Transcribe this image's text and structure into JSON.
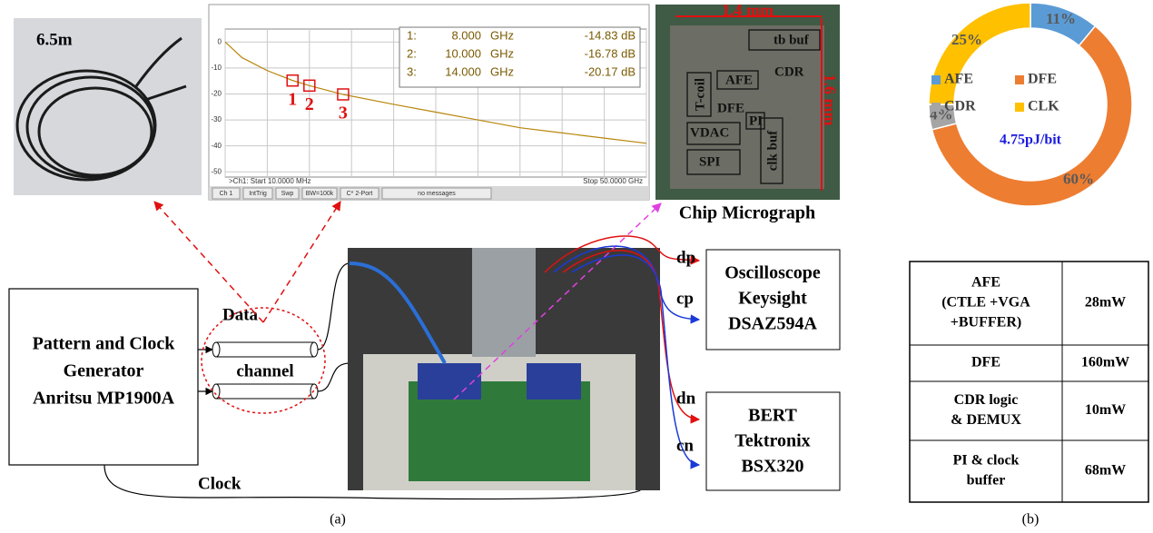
{
  "chart_data": [
    {
      "type": "line",
      "color": "#b8860b",
      "x": [
        0.01,
        2,
        5,
        8,
        10,
        14,
        20,
        25,
        30,
        35,
        40,
        45,
        50
      ],
      "values": [
        0,
        -6,
        -11,
        -14.8,
        -16.8,
        -20.2,
        -24,
        -27,
        -30,
        -33,
        -35,
        -37,
        -39
      ],
      "xlim": [
        0,
        50
      ],
      "xticks": [
        0,
        5,
        10,
        15,
        20,
        25,
        30,
        35,
        40,
        45,
        50
      ],
      "ylim": [
        -52,
        5
      ],
      "yticks": [
        0,
        -10,
        -20,
        -30,
        -40,
        -50
      ],
      "grid": true,
      "markers": {
        "x": [
          8,
          10,
          14
        ],
        "values": [
          -14.83,
          -16.78,
          -20.17
        ],
        "labels": [
          "1",
          "2",
          "3"
        ],
        "color": "#e01010"
      },
      "marker_table": [
        [
          "1:",
          "8.000",
          "GHz",
          "-14.83 dB"
        ],
        [
          "2:",
          "10.000",
          "GHz",
          "-16.78 dB"
        ],
        [
          "3:",
          "14.000",
          "GHz",
          "-20.17 dB"
        ]
      ],
      "footer_start": ">Ch1:  Start  10.0000 MHz",
      "footer_stop": "Stop  50.0000 GHz",
      "tabs": [
        "Ch 1",
        "IntTrig",
        "Swp",
        "BW=100k",
        "C* 2-Port",
        "no messages"
      ]
    },
    {
      "type": "pie",
      "donut": true,
      "categories": [
        "AFE",
        "DFE",
        "CDR",
        "CLK"
      ],
      "values": [
        11,
        60,
        4,
        25
      ],
      "value_labels": [
        "11%",
        "60%",
        "4%",
        "25%"
      ],
      "colors": [
        "#5b9bd5",
        "#ed7d31",
        "#a5a5a5",
        "#ffc000"
      ],
      "center_label": "4.75pJ/bit"
    }
  ],
  "cable_photo": {
    "length": "6.5m"
  },
  "micrograph": {
    "width": "1.4 mm",
    "height": "1.6 mm",
    "blocks": [
      "tb buf",
      "AFE",
      "CDR",
      "DFE",
      "T-coil",
      "PI",
      "VDAC",
      "clk buf",
      "SPI"
    ],
    "caption": "Chip Micrograph"
  },
  "setup": {
    "generator": [
      "Pattern and Clock",
      "Generator",
      "Anritsu MP1900A"
    ],
    "data_label": "Data",
    "channel_label": "channel",
    "clock_label": "Clock",
    "ports": [
      "dp",
      "cp",
      "dn",
      "cn"
    ],
    "scope": [
      "Oscilloscope",
      "Keysight",
      "DSAZ594A"
    ],
    "bert": [
      "BERT",
      "Tektronix",
      "BSX320"
    ]
  },
  "table": {
    "rows": [
      [
        [
          "AFE",
          "(CTLE +VGA",
          "+BUFFER)"
        ],
        [
          "28mW"
        ]
      ],
      [
        [
          "DFE"
        ],
        [
          "160mW"
        ]
      ],
      [
        [
          "CDR logic",
          "& DEMUX"
        ],
        [
          "10mW"
        ]
      ],
      [
        [
          "PI & clock",
          "buffer"
        ],
        [
          "68mW"
        ]
      ]
    ]
  },
  "captions": [
    "(a)",
    "(b)"
  ]
}
